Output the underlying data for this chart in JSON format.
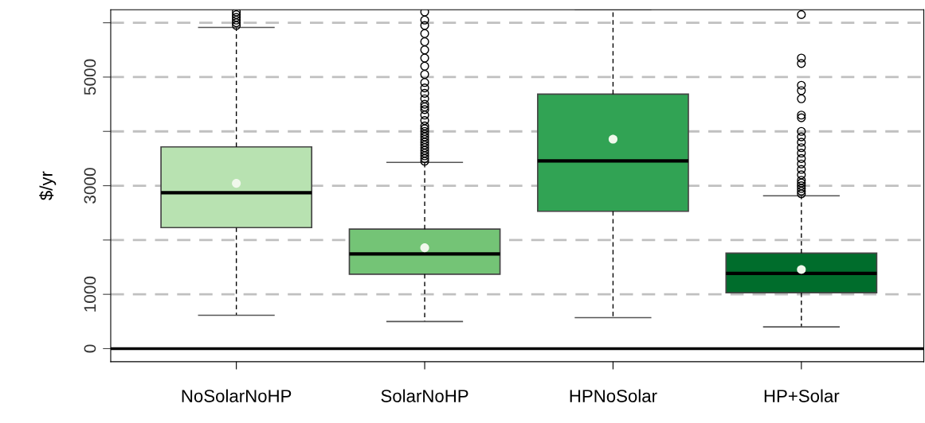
{
  "chart_data": {
    "type": "box",
    "ylabel": "$/yr",
    "categories": [
      "NoSolarNoHP",
      "SolarNoHP",
      "HPNoSolar",
      "HP+Solar"
    ],
    "colors": [
      "#b8e2b1",
      "#74c476",
      "#31a354",
      "#006d2c"
    ],
    "boxes": [
      {
        "low": 614,
        "q1": 2229,
        "median": 2871,
        "q3": 3714,
        "high": 5914,
        "mean": 3043,
        "outliers": [
          5950,
          6000,
          6050,
          6100,
          6150,
          6200
        ]
      },
      {
        "low": 500,
        "q1": 1371,
        "median": 1743,
        "q3": 2200,
        "high": 3429,
        "mean": 1857,
        "outliers": [
          3450,
          3500,
          3550,
          3600,
          3650,
          3700,
          3750,
          3800,
          3850,
          3900,
          3950,
          4000,
          4050,
          4100,
          4200,
          4300,
          4400,
          4450,
          4500,
          4600,
          4700,
          4800,
          4900,
          5050,
          5200,
          5350,
          5500,
          5650,
          5800,
          5950,
          6050,
          6200
        ]
      },
      {
        "low": 571,
        "q1": 2529,
        "median": 3457,
        "q3": 4686,
        "high": 6240,
        "mean": 3857
      },
      {
        "low": 400,
        "q1": 1029,
        "median": 1386,
        "q3": 1757,
        "high": 2814,
        "mean": 1457,
        "outliers": [
          2850,
          2900,
          2950,
          3000,
          3050,
          3100,
          3200,
          3300,
          3400,
          3500,
          3600,
          3700,
          3800,
          3900,
          4000,
          4250,
          4300,
          4600,
          4750,
          4850,
          5250,
          5350,
          6150
        ]
      }
    ],
    "ylim": [
      -240,
      6240
    ],
    "yticks": [
      0,
      1000,
      {
        "value": 2000,
        "label": null
      },
      3000,
      {
        "value": 4000,
        "label": null
      },
      5000,
      {
        "value": 6000,
        "label": null
      }
    ],
    "grid": "y",
    "ref_lines": [
      {
        "axis": "y",
        "value": 0,
        "color": "#000000",
        "line_style": "solid"
      }
    ]
  }
}
